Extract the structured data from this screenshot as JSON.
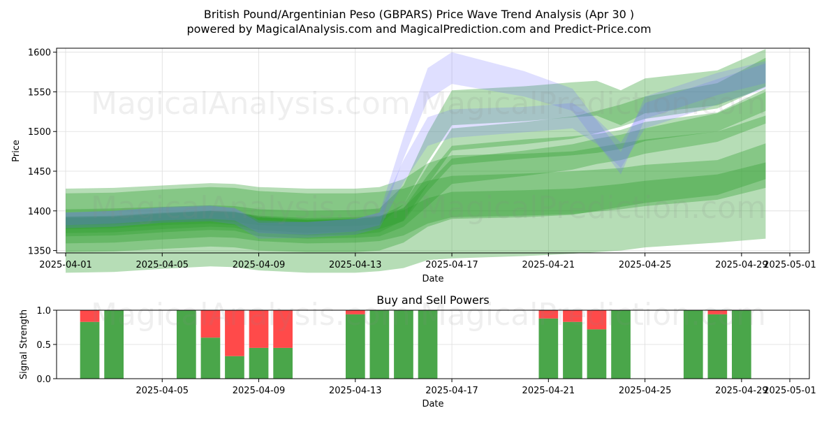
{
  "title_line1": "British Pound/Argentinian Peso (GBPARS) Price Wave Trend Analysis (Apr 30 )",
  "title_line2": "powered by MagicalAnalysis.com and MagicalPrediction.com and Predict-Price.com",
  "watermarks": [
    "MagicalAnalysis.com",
    "MagicalPrediction.com"
  ],
  "colors": {
    "green": "#2e9e2e",
    "blue": "#6f6fff",
    "buy": "#4aa64a",
    "sell": "#ff4a4a"
  },
  "chart_data": [
    {
      "type": "area",
      "title": "",
      "xlabel": "Date",
      "ylabel": "Price",
      "ylim": [
        1347,
        1605
      ],
      "xlim": [
        "2025-04-01",
        "2025-05-01"
      ],
      "x_ticks": [
        "2025-04-01",
        "2025-04-05",
        "2025-04-09",
        "2025-04-13",
        "2025-04-17",
        "2025-04-21",
        "2025-04-25",
        "2025-04-29",
        "2025-05-01"
      ],
      "y_ticks": [
        1350,
        1400,
        1450,
        1500,
        1550,
        1600
      ],
      "grid": true,
      "x": [
        "2025-04-01",
        "2025-04-03",
        "2025-04-05",
        "2025-04-07",
        "2025-04-08",
        "2025-04-09",
        "2025-04-11",
        "2025-04-13",
        "2025-04-14",
        "2025-04-15",
        "2025-04-16",
        "2025-04-17",
        "2025-04-20",
        "2025-04-22",
        "2025-04-23",
        "2025-04-24",
        "2025-04-25",
        "2025-04-28",
        "2025-04-30"
      ],
      "series": [
        {
          "color": "green",
          "center": [
            1385,
            1386,
            1390,
            1392,
            1390,
            1384,
            1380,
            1382,
            1385,
            1395,
            1435,
            1470,
            1478,
            1482,
            1485,
            1490,
            1500,
            1512,
            1540
          ],
          "width": [
            8,
            8,
            8,
            8,
            8,
            8,
            8,
            8,
            8,
            8,
            10,
            12,
            12,
            12,
            12,
            12,
            12,
            12,
            14
          ]
        },
        {
          "color": "green",
          "center": [
            1380,
            1381,
            1385,
            1388,
            1387,
            1380,
            1377,
            1378,
            1380,
            1392,
            1420,
            1450,
            1460,
            1468,
            1475,
            1480,
            1488,
            1505,
            1530
          ],
          "width": [
            12,
            12,
            12,
            12,
            12,
            12,
            12,
            12,
            12,
            12,
            14,
            16,
            16,
            16,
            16,
            16,
            16,
            18,
            20
          ]
        },
        {
          "color": "green",
          "center": [
            1382,
            1383,
            1387,
            1390,
            1389,
            1383,
            1379,
            1380,
            1383,
            1398,
            1445,
            1490,
            1498,
            1505,
            1512,
            1520,
            1530,
            1545,
            1575
          ],
          "width": [
            10,
            10,
            10,
            10,
            10,
            10,
            10,
            10,
            10,
            10,
            12,
            14,
            14,
            14,
            14,
            14,
            14,
            16,
            18
          ]
        },
        {
          "color": "green",
          "center": [
            1388,
            1389,
            1392,
            1395,
            1394,
            1390,
            1388,
            1388,
            1390,
            1400,
            1420,
            1430,
            1432,
            1435,
            1440,
            1445,
            1450,
            1460,
            1480
          ],
          "width": [
            40,
            40,
            40,
            40,
            40,
            40,
            40,
            40,
            40,
            40,
            40,
            40,
            40,
            40,
            40,
            40,
            40,
            40,
            40
          ]
        },
        {
          "color": "green",
          "center": [
            1375,
            1376,
            1380,
            1383,
            1382,
            1378,
            1375,
            1376,
            1378,
            1385,
            1400,
            1408,
            1410,
            1412,
            1415,
            1418,
            1422,
            1430,
            1445
          ],
          "width": [
            16,
            16,
            16,
            16,
            16,
            16,
            16,
            16,
            16,
            16,
            16,
            16,
            16,
            16,
            16,
            16,
            16,
            16,
            16
          ]
        },
        {
          "color": "green",
          "center": [
            1372,
            1373,
            1377,
            1380,
            1379,
            1375,
            1372,
            1372,
            1374,
            1378,
            1388,
            1392,
            1395,
            1398,
            1400,
            1402,
            1406,
            1412,
            1425
          ],
          "width": [
            50,
            50,
            50,
            50,
            50,
            50,
            50,
            50,
            50,
            50,
            50,
            52,
            52,
            52,
            52,
            52,
            52,
            52,
            60
          ]
        },
        {
          "color": "green",
          "center": [
            1392,
            1393,
            1395,
            1397,
            1396,
            1392,
            1390,
            1391,
            1393,
            1420,
            1480,
            1530,
            1535,
            1540,
            1542,
            1530,
            1545,
            1555,
            1580
          ],
          "width": [
            10,
            10,
            10,
            10,
            10,
            10,
            10,
            10,
            10,
            12,
            18,
            22,
            22,
            22,
            22,
            22,
            22,
            22,
            24
          ]
        },
        {
          "color": "blue",
          "center": [
            1390,
            1392,
            1396,
            1398,
            1396,
            1380,
            1378,
            1382,
            1390,
            1480,
            1560,
            1580,
            1560,
            1540,
            1500,
            1460,
            1530,
            1560,
            1575
          ],
          "width": [
            8,
            8,
            8,
            8,
            8,
            8,
            8,
            8,
            8,
            14,
            20,
            20,
            16,
            14,
            14,
            14,
            14,
            14,
            14
          ]
        },
        {
          "color": "blue",
          "center": [
            1388,
            1390,
            1395,
            1397,
            1393,
            1375,
            1376,
            1380,
            1388,
            1450,
            1500,
            1510,
            1515,
            1520,
            1500,
            1470,
            1520,
            1550,
            1570
          ],
          "width": [
            10,
            10,
            10,
            10,
            10,
            10,
            10,
            10,
            10,
            14,
            18,
            18,
            16,
            16,
            16,
            16,
            16,
            16,
            16
          ]
        }
      ]
    },
    {
      "type": "bar",
      "title": "Buy and Sell Powers",
      "xlabel": "Date",
      "ylabel": "Signal Strength",
      "ylim": [
        0,
        1.0
      ],
      "xlim": [
        "2025-04-01",
        "2025-05-01"
      ],
      "x_ticks": [
        "2025-04-05",
        "2025-04-09",
        "2025-04-13",
        "2025-04-17",
        "2025-04-21",
        "2025-04-25",
        "2025-04-29",
        "2025-05-01"
      ],
      "y_ticks": [
        0.0,
        0.5,
        1.0
      ],
      "grid": true,
      "dates": [
        "2025-04-02",
        "2025-04-03",
        "2025-04-06",
        "2025-04-07",
        "2025-04-08",
        "2025-04-09",
        "2025-04-10",
        "2025-04-13",
        "2025-04-14",
        "2025-04-15",
        "2025-04-16",
        "2025-04-21",
        "2025-04-22",
        "2025-04-23",
        "2025-04-24",
        "2025-04-27",
        "2025-04-28",
        "2025-04-29"
      ],
      "buy": [
        0.83,
        1.0,
        1.0,
        0.6,
        0.33,
        0.45,
        0.45,
        0.94,
        1.0,
        1.0,
        1.0,
        0.88,
        0.83,
        0.72,
        1.0,
        1.0,
        0.94,
        1.0
      ],
      "sell": [
        0.17,
        0.0,
        0.0,
        0.4,
        0.67,
        0.55,
        0.55,
        0.06,
        0.0,
        0.0,
        0.0,
        0.12,
        0.17,
        0.28,
        0.0,
        0.0,
        0.06,
        0.0
      ]
    }
  ]
}
